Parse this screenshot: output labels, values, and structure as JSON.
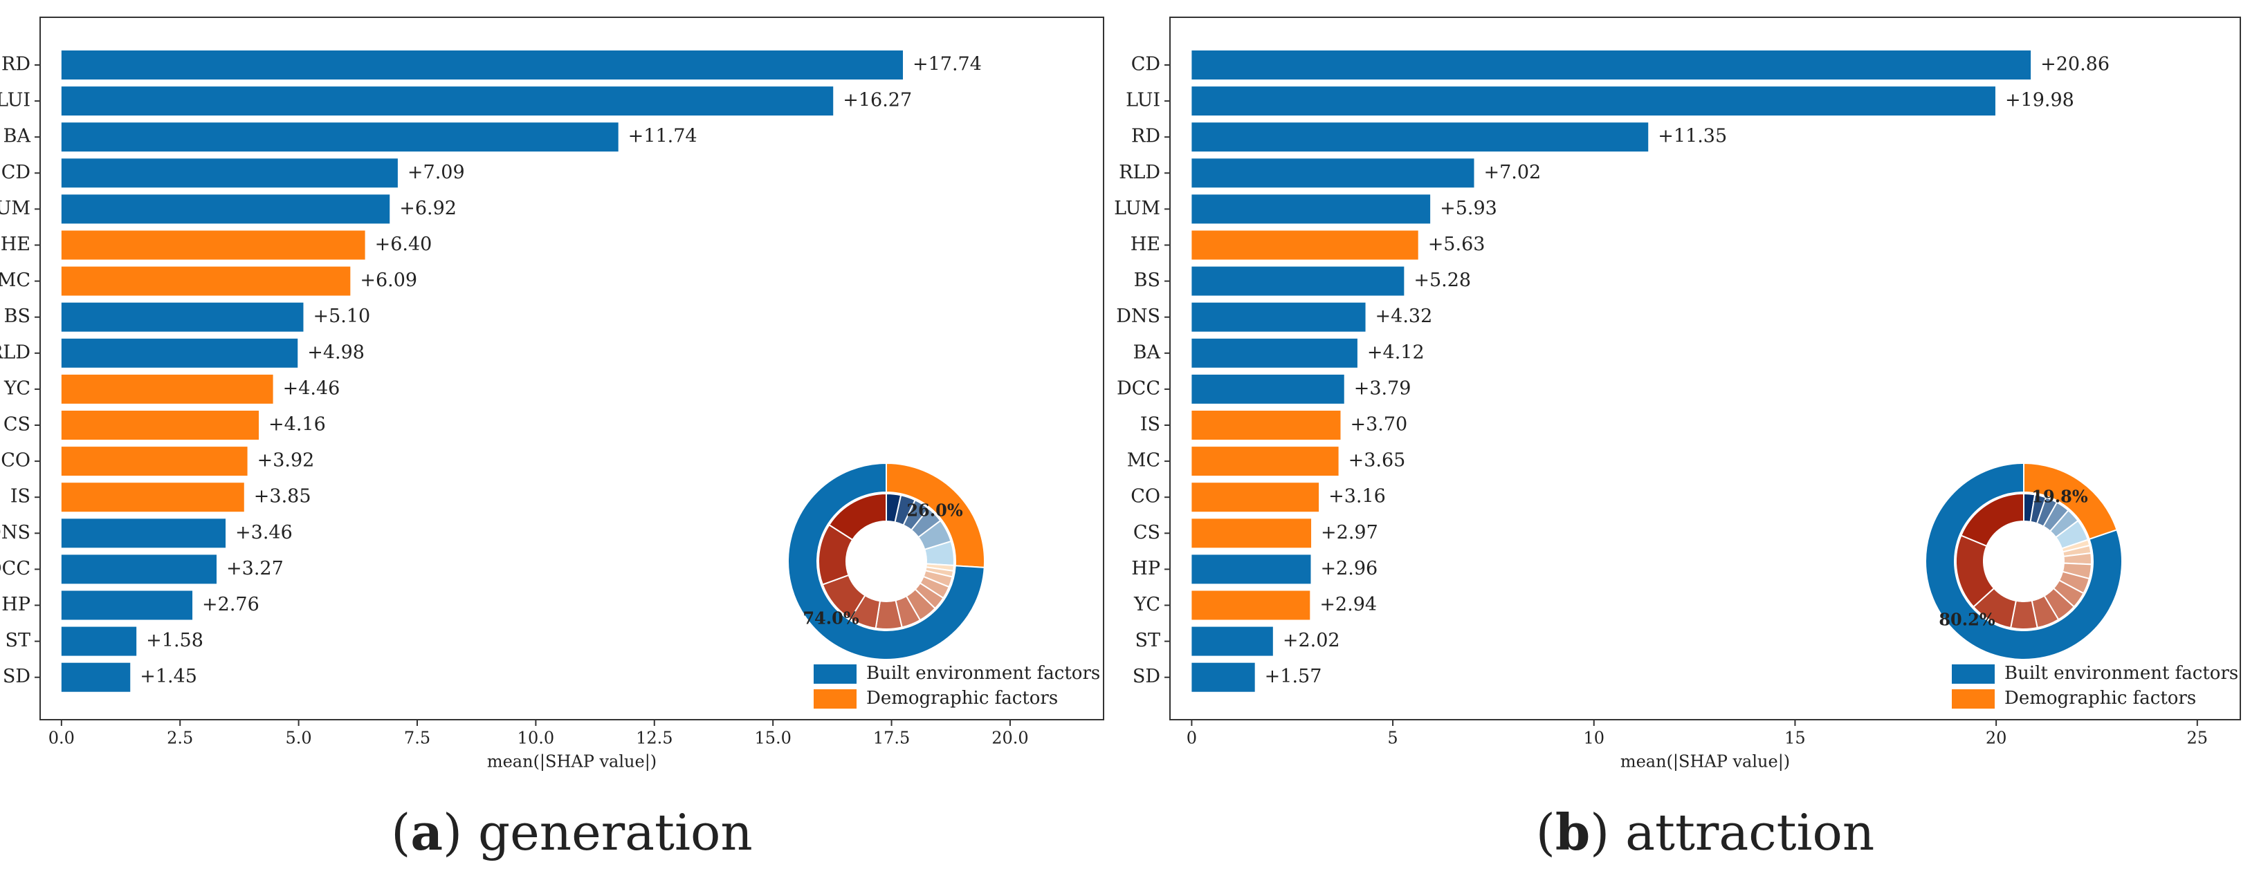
{
  "chart_data": [
    {
      "type": "bar",
      "orientation": "horizontal",
      "categories": [
        "RD",
        "LUI",
        "BA",
        "CD",
        "LUM",
        "HE",
        "MC",
        "BS",
        "RLD",
        "YC",
        "CS",
        "CO",
        "IS",
        "DNS",
        "DCC",
        "HP",
        "ST",
        "SD"
      ],
      "series": [
        {
          "name": "Built environment factors",
          "color": "#0b6fb0",
          "values": [
            17.74,
            16.27,
            11.74,
            7.09,
            6.92,
            null,
            null,
            5.1,
            4.98,
            null,
            null,
            null,
            null,
            3.46,
            3.27,
            2.76,
            1.58,
            1.45
          ],
          "value_labels": [
            "+17.74",
            "+16.27",
            "+11.74",
            "+7.09",
            "+6.92",
            null,
            null,
            "+5.10",
            "+4.98",
            null,
            null,
            null,
            null,
            "+3.46",
            "+3.27",
            "+2.76",
            "+1.58",
            "+1.45"
          ]
        },
        {
          "name": "Demographic factors",
          "color": "#ff7f0e",
          "values": [
            null,
            null,
            null,
            null,
            null,
            6.4,
            6.09,
            null,
            null,
            4.46,
            4.16,
            3.92,
            3.85,
            null,
            null,
            null,
            null,
            null
          ],
          "value_labels": [
            null,
            null,
            null,
            null,
            null,
            "+6.40",
            "+6.09",
            null,
            null,
            "+4.46",
            "+4.16",
            "+3.92",
            "+3.85",
            null,
            null,
            null,
            null,
            null
          ]
        }
      ],
      "xlabel": "mean(|SHAP value|)",
      "xlim": [
        -0.45,
        21.97
      ],
      "xticks": [
        {
          "value": 0,
          "label": "0.0"
        },
        {
          "value": 2.5,
          "label": "2.5"
        },
        {
          "value": 5,
          "label": "5.0"
        },
        {
          "value": 7.5,
          "label": "7.5"
        },
        {
          "value": 10,
          "label": "10.0"
        },
        {
          "value": 12.5,
          "label": "12.5"
        },
        {
          "value": 15,
          "label": "15.0"
        },
        {
          "value": 17.5,
          "label": "17.5"
        },
        {
          "value": 20,
          "label": "20.0"
        }
      ],
      "donut": {
        "values": [
          74.0,
          26.0
        ],
        "value_labels": [
          "74.0%",
          "26.0%"
        ]
      },
      "legend": "lower right",
      "caption": [
        "(",
        "a",
        ") generation"
      ]
    },
    {
      "type": "bar",
      "orientation": "horizontal",
      "categories": [
        "CD",
        "LUI",
        "RD",
        "RLD",
        "LUM",
        "HE",
        "BS",
        "DNS",
        "BA",
        "DCC",
        "IS",
        "MC",
        "CO",
        "CS",
        "HP",
        "YC",
        "ST",
        "SD"
      ],
      "series": [
        {
          "name": "Built environment factors",
          "color": "#0b6fb0",
          "values": [
            20.86,
            19.98,
            11.35,
            7.02,
            5.93,
            null,
            5.28,
            4.32,
            4.12,
            3.79,
            null,
            null,
            null,
            null,
            2.96,
            null,
            2.02,
            1.57
          ],
          "value_labels": [
            "+20.86",
            "+19.98",
            "+11.35",
            "+7.02",
            "+5.93",
            null,
            "+5.28",
            "+4.32",
            "+4.12",
            "+3.79",
            null,
            null,
            null,
            null,
            "+2.96",
            null,
            "+2.02",
            "+1.57"
          ]
        },
        {
          "name": "Demographic factors",
          "color": "#ff7f0e",
          "values": [
            null,
            null,
            null,
            null,
            null,
            5.63,
            null,
            null,
            null,
            null,
            3.7,
            3.65,
            3.16,
            2.97,
            null,
            2.94,
            null,
            null
          ],
          "value_labels": [
            null,
            null,
            null,
            null,
            null,
            "+5.63",
            null,
            null,
            null,
            null,
            "+3.70",
            "+3.65",
            "+3.16",
            "+2.97",
            null,
            "+2.94",
            null,
            null
          ]
        }
      ],
      "xlabel": "mean(|SHAP value|)",
      "xlim": [
        -0.54,
        26.07
      ],
      "xticks": [
        0,
        5,
        10,
        15,
        20,
        25
      ],
      "donut": {
        "values": [
          80.2,
          19.8
        ],
        "value_labels": [
          "80.2%",
          "19.8%"
        ]
      },
      "legend": "lower right",
      "caption": [
        "(",
        "b",
        ") attraction"
      ]
    }
  ]
}
